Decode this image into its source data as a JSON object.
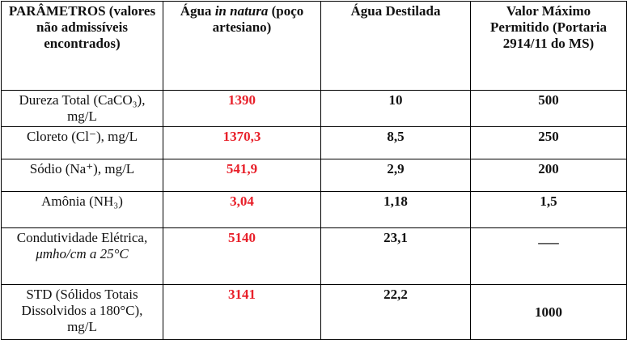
{
  "table": {
    "header": [
      "PARÂMETROS (valores não admissíveis encontrados)",
      {
        "parts": [
          {
            "text": "Água "
          },
          {
            "text": "in natura",
            "italic": true
          },
          {
            "text": " (poço artesiano)"
          }
        ]
      },
      "Água Destilada",
      "Valor Máximo Permitido (Portaria 2914/11 do MS)"
    ],
    "rows": [
      [
        "Dureza Total (CaCO₃), mg/L",
        "1390",
        "10",
        "500"
      ],
      [
        "Cloreto (Cl⁻), mg/L",
        "1370,3",
        "8,5",
        "250"
      ],
      [
        "Sódio (Na⁺), mg/L",
        "541,9",
        "2,9",
        "200"
      ],
      [
        "Amônia (NH₃)",
        "3,04",
        "1,18",
        "1,5"
      ],
      [
        {
          "parts": [
            {
              "text": "Condutividade Elétrica, "
            },
            {
              "text": "μmho/cm a 25°C",
              "italic": true
            }
          ]
        },
        "5140",
        "23,1",
        "___"
      ],
      [
        "STD (Sólidos Totais Dissolvidos a 180°C), mg/L",
        "3141",
        "22,2",
        "1000"
      ]
    ],
    "highlight_column": 1,
    "highlight_color": "#e8202a"
  }
}
